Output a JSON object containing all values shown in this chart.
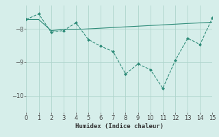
{
  "line1_x": [
    0,
    1,
    2,
    3,
    4,
    5,
    6,
    7,
    8,
    9,
    10,
    11,
    12,
    13,
    14,
    15
  ],
  "line1_y": [
    -7.72,
    -7.55,
    -8.1,
    -8.05,
    -7.82,
    -8.32,
    -8.52,
    -8.68,
    -9.35,
    -9.05,
    -9.22,
    -9.78,
    -8.95,
    -8.28,
    -8.47,
    -7.67
  ],
  "line2_x": [
    0,
    1,
    2,
    3,
    4,
    5,
    6,
    7,
    8,
    9,
    10,
    11,
    12,
    13,
    14,
    15
  ],
  "line2_y": [
    -7.72,
    -7.72,
    -8.05,
    -8.02,
    -8.02,
    -8.0,
    -7.98,
    -7.96,
    -7.94,
    -7.92,
    -7.9,
    -7.88,
    -7.86,
    -7.84,
    -7.82,
    -7.8
  ],
  "color": "#2d8b78",
  "bg_color": "#d6eeea",
  "grid_color": "#aed4cc",
  "xlabel": "Humidex (Indice chaleur)",
  "xlim": [
    0,
    15
  ],
  "ylim": [
    -10.5,
    -7.3
  ],
  "yticks": [
    -10,
    -9,
    -8
  ],
  "xticks": [
    0,
    1,
    2,
    3,
    4,
    5,
    6,
    7,
    8,
    9,
    10,
    11,
    12,
    13,
    14,
    15
  ]
}
